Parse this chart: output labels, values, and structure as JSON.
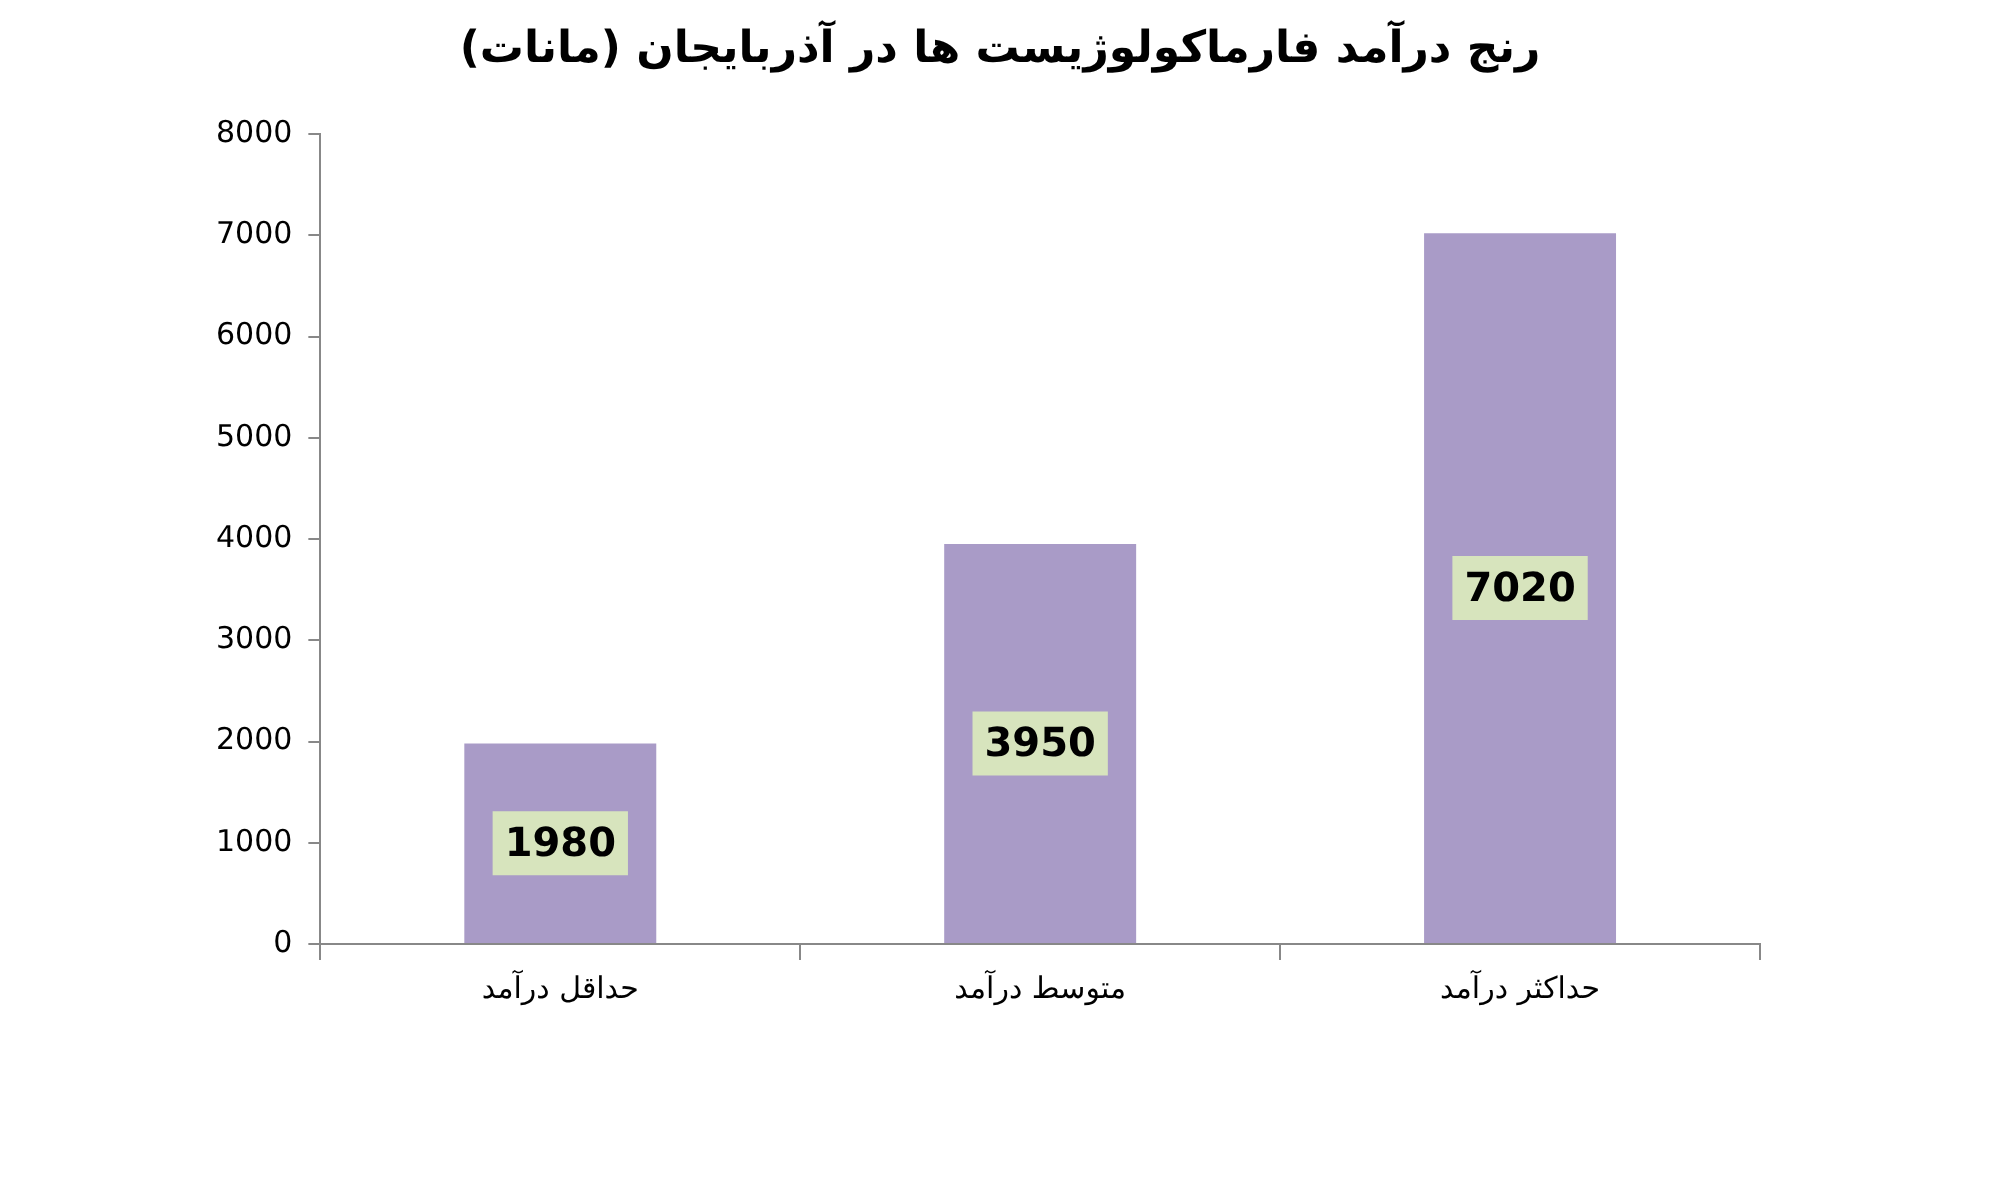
{
  "chart_data": {
    "type": "bar",
    "title": "رنج درآمد فارماکولوژیست ها در آذربایجان (مانات)",
    "categories": [
      "حداقل درآمد",
      "متوسط درآمد",
      "حداکثر درآمد"
    ],
    "values": [
      1980,
      3950,
      7020
    ],
    "color": "#a99bc7",
    "ylim": [
      0,
      8000
    ],
    "yticks": [
      0,
      1000,
      2000,
      3000,
      4000,
      5000,
      6000,
      7000,
      8000
    ],
    "grid": false,
    "legend": false,
    "data_labels": true
  }
}
